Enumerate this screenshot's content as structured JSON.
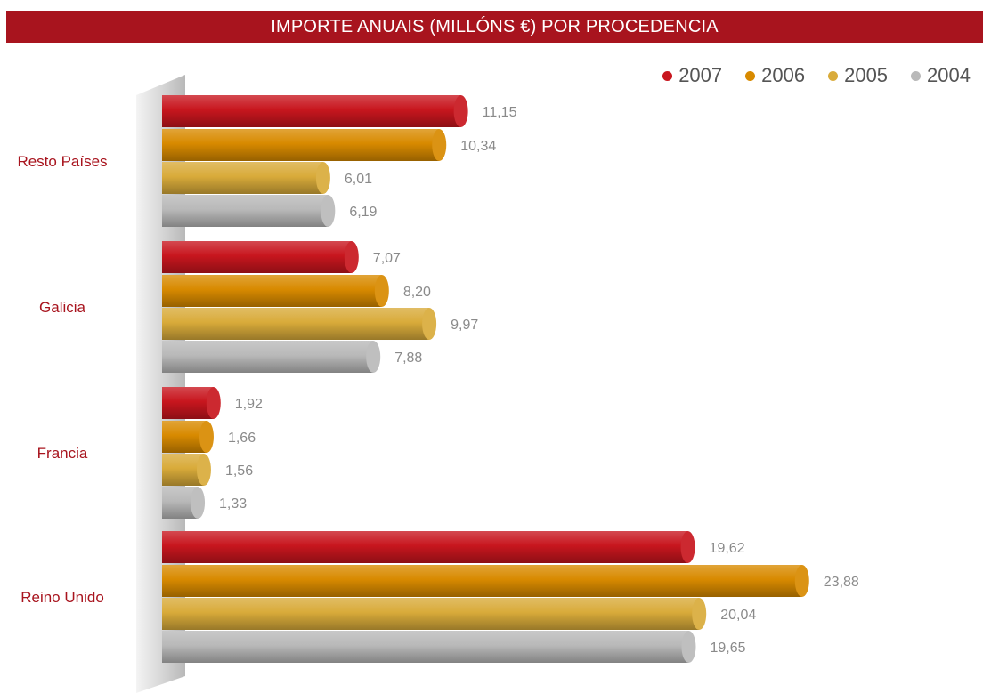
{
  "chart_data": {
    "type": "bar",
    "orientation": "horizontal",
    "title": "IMPORTE ANUAIS (MILLÓNS €)  POR PROCEDENCIA",
    "categories": [
      "Resto Países",
      "Galicia",
      "Francia",
      "Reino Unido"
    ],
    "series": [
      {
        "name": "2007",
        "color": "#c8161e",
        "values": [
          11.15,
          7.07,
          1.92,
          19.62
        ],
        "labels": [
          "11,15",
          "7,07",
          "1,92",
          "19,62"
        ]
      },
      {
        "name": "2006",
        "color": "#d88a00",
        "values": [
          10.34,
          8.2,
          1.66,
          23.88
        ],
        "labels": [
          "10,34",
          "8,20",
          "1,66",
          "23,88"
        ]
      },
      {
        "name": "2005",
        "color": "#d9ab3a",
        "values": [
          6.01,
          9.97,
          1.56,
          20.04
        ],
        "labels": [
          "6,01",
          "9,97",
          "1,56",
          "20,04"
        ]
      },
      {
        "name": "2004",
        "color": "#b9b9b9",
        "values": [
          6.19,
          7.88,
          1.33,
          19.65
        ],
        "labels": [
          "6,19",
          "7,88",
          "1,33",
          "19,65"
        ]
      }
    ],
    "legend_position": "top-right",
    "grid": false
  }
}
